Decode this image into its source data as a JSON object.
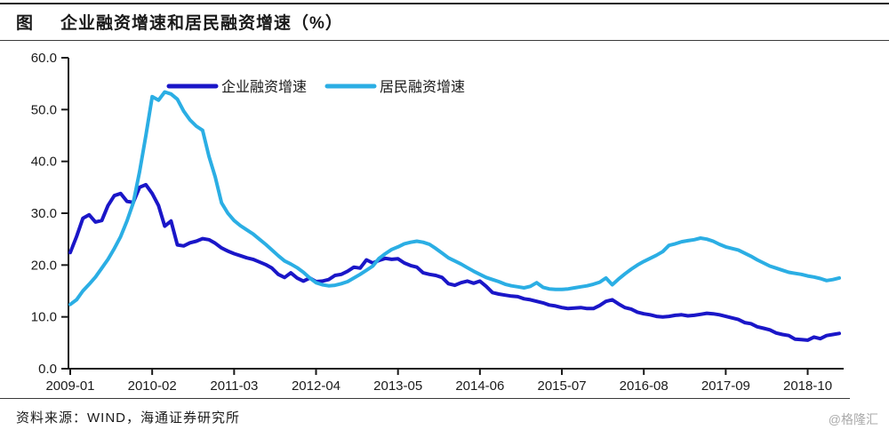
{
  "header": {
    "figure_label": "图",
    "title": "企业融资增速和居民融资增速（%）"
  },
  "footer": {
    "source": "资料来源：WIND，海通证券研究所",
    "watermark": "@格隆汇"
  },
  "colors": {
    "corporate_line": "#1A16C8",
    "resident_line": "#2BAEE4",
    "axis": "#1a1a1a"
  },
  "chart_data": {
    "type": "line",
    "title": "企业融资增速和居民融资增速（%）",
    "xlabel": "",
    "ylabel": "",
    "ylim": [
      0,
      60
    ],
    "y_ticks": [
      0,
      10,
      20,
      30,
      40,
      50,
      60
    ],
    "y_tick_labels": [
      "0.0",
      "10.0",
      "20.0",
      "30.0",
      "40.0",
      "50.0",
      "60.0"
    ],
    "x_unit": "month",
    "x_range": [
      "2009-01",
      "2019-03"
    ],
    "x_tick_labels": [
      "2009-01",
      "2010-02",
      "2011-03",
      "2012-04",
      "2013-05",
      "2014-06",
      "2015-07",
      "2016-08",
      "2017-09",
      "2018-10"
    ],
    "x_tick_month_index": [
      0,
      13,
      26,
      39,
      52,
      65,
      78,
      91,
      104,
      117
    ],
    "legend_position": "top",
    "grid": false,
    "series": [
      {
        "name": "企业融资增速",
        "color": "#1A16C8",
        "values": [
          22.4,
          25.5,
          29.0,
          29.7,
          28.3,
          28.6,
          31.5,
          33.4,
          33.8,
          32.3,
          32.1,
          35.0,
          35.5,
          33.8,
          31.5,
          27.5,
          28.5,
          23.9,
          23.7,
          24.3,
          24.6,
          25.1,
          24.9,
          24.2,
          23.3,
          22.7,
          22.2,
          21.8,
          21.4,
          21.1,
          20.6,
          20.1,
          19.4,
          18.2,
          17.6,
          18.5,
          17.5,
          16.9,
          17.5,
          16.8,
          16.9,
          17.2,
          18.0,
          18.2,
          18.8,
          19.6,
          19.4,
          21.0,
          20.4,
          20.9,
          21.3,
          21.1,
          21.2,
          20.4,
          19.9,
          19.6,
          18.5,
          18.2,
          18.0,
          17.6,
          16.4,
          16.1,
          16.6,
          16.9,
          16.5,
          16.9,
          15.9,
          14.7,
          14.4,
          14.2,
          14.0,
          13.9,
          13.5,
          13.3,
          13.0,
          12.7,
          12.3,
          12.1,
          11.8,
          11.6,
          11.7,
          11.8,
          11.6,
          11.6,
          12.2,
          13.0,
          13.3,
          12.5,
          11.8,
          11.5,
          10.9,
          10.6,
          10.4,
          10.1,
          10.0,
          10.1,
          10.3,
          10.4,
          10.2,
          10.3,
          10.5,
          10.7,
          10.6,
          10.4,
          10.1,
          9.8,
          9.5,
          8.9,
          8.7,
          8.1,
          7.8,
          7.5,
          6.9,
          6.6,
          6.4,
          5.7,
          5.6,
          5.5,
          6.1,
          5.8,
          6.4,
          6.6,
          6.8
        ]
      },
      {
        "name": "居民融资增速",
        "color": "#2BAEE4",
        "values": [
          12.4,
          13.3,
          15.0,
          16.3,
          17.7,
          19.4,
          21.1,
          23.2,
          25.5,
          28.5,
          32.0,
          38.0,
          45.0,
          52.5,
          51.8,
          53.4,
          53.0,
          52.0,
          49.7,
          48.0,
          46.8,
          46.0,
          41.0,
          37.0,
          32.0,
          30.0,
          28.6,
          27.6,
          26.8,
          26.0,
          25.0,
          24.0,
          22.9,
          21.8,
          20.8,
          20.2,
          19.5,
          18.6,
          17.5,
          16.6,
          16.2,
          16.0,
          16.1,
          16.4,
          16.8,
          17.5,
          18.2,
          19.0,
          19.8,
          21.3,
          22.2,
          23.0,
          23.5,
          24.1,
          24.4,
          24.6,
          24.4,
          24.0,
          23.2,
          22.3,
          21.4,
          20.8,
          20.2,
          19.5,
          18.8,
          18.2,
          17.6,
          17.2,
          16.8,
          16.3,
          16.0,
          15.8,
          15.6,
          15.9,
          16.6,
          15.7,
          15.4,
          15.3,
          15.3,
          15.4,
          15.6,
          15.8,
          16.0,
          16.3,
          16.7,
          17.5,
          16.2,
          17.3,
          18.3,
          19.2,
          20.0,
          20.7,
          21.3,
          21.9,
          22.6,
          23.8,
          24.1,
          24.5,
          24.7,
          24.9,
          25.2,
          25.0,
          24.6,
          24.0,
          23.5,
          23.2,
          22.9,
          22.3,
          21.7,
          21.0,
          20.4,
          19.8,
          19.4,
          19.0,
          18.6,
          18.4,
          18.2,
          17.9,
          17.7,
          17.4,
          17.0,
          17.2,
          17.5
        ]
      }
    ]
  }
}
